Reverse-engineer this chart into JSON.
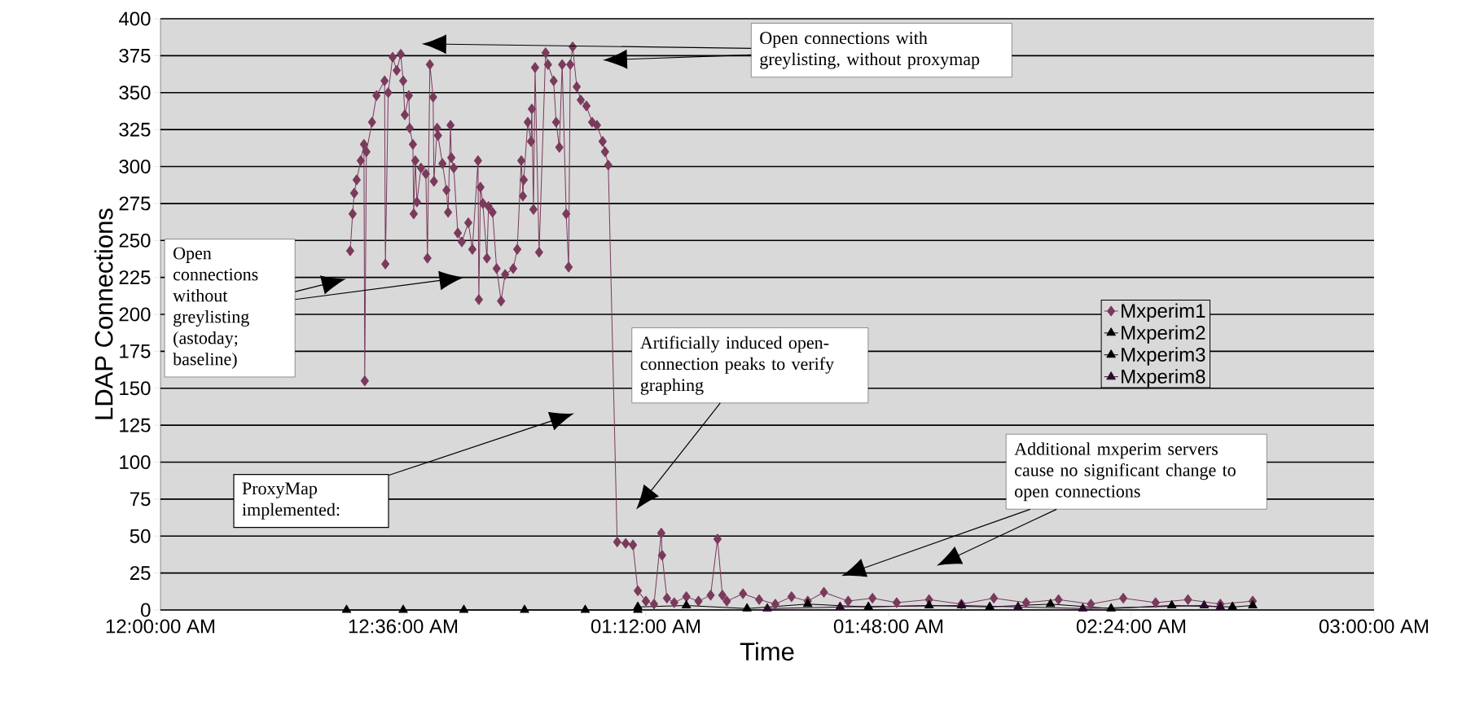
{
  "chart_data": {
    "type": "line",
    "xlabel": "Time",
    "ylabel": "LDAP Connections",
    "xlim": [
      0,
      3
    ],
    "ylim": [
      0,
      400
    ],
    "xticks": [
      {
        "value": 0,
        "label": "12:00:00 AM"
      },
      {
        "value": 0.6,
        "label": "12:36:00 AM"
      },
      {
        "value": 1.2,
        "label": "01:12:00 AM"
      },
      {
        "value": 1.8,
        "label": "01:48:00 AM"
      },
      {
        "value": 2.4,
        "label": "02:24:00 AM"
      },
      {
        "value": 3,
        "label": "03:00:00 AM"
      }
    ],
    "yticks": [
      0,
      25,
      50,
      75,
      100,
      125,
      150,
      175,
      200,
      225,
      250,
      275,
      300,
      325,
      350,
      375,
      400
    ],
    "grid": "y",
    "legend": "right",
    "line_style": "solid",
    "series": [
      {
        "name": "Mxperim1",
        "color": "#7a3a5c",
        "marker": "diamond",
        "x": [
          0.469,
          0.475,
          0.479,
          0.485,
          0.495,
          0.503,
          0.505,
          0.509,
          0.523,
          0.534,
          0.554,
          0.556,
          0.563,
          0.574,
          0.584,
          0.594,
          0.6,
          0.604,
          0.614,
          0.616,
          0.624,
          0.626,
          0.63,
          0.634,
          0.644,
          0.656,
          0.66,
          0.666,
          0.674,
          0.676,
          0.684,
          0.686,
          0.697,
          0.707,
          0.711,
          0.717,
          0.719,
          0.725,
          0.735,
          0.745,
          0.761,
          0.771,
          0.785,
          0.787,
          0.791,
          0.797,
          0.807,
          0.811,
          0.821,
          0.831,
          0.842,
          0.852,
          0.872,
          0.882,
          0.892,
          0.896,
          0.898,
          0.908,
          0.916,
          0.918,
          0.922,
          0.926,
          0.936,
          0.952,
          0.958,
          0.972,
          0.978,
          0.986,
          0.993,
          1.003,
          1.009,
          1.013,
          1.019,
          1.029,
          1.039,
          1.053,
          1.067,
          1.079,
          1.093,
          1.099,
          1.107,
          1.129,
          1.15,
          1.168,
          1.18,
          1.2,
          1.22,
          1.238,
          1.24,
          1.252,
          1.27,
          1.3,
          1.33,
          1.36,
          1.377,
          1.389,
          1.4,
          1.44,
          1.48,
          1.52,
          1.56,
          1.6,
          1.64,
          1.7,
          1.76,
          1.82,
          1.9,
          1.98,
          2.06,
          2.14,
          2.22,
          2.3,
          2.38,
          2.46,
          2.54,
          2.62,
          2.7
        ],
        "values": [
          243,
          268,
          282,
          291,
          304,
          315,
          155,
          310,
          330,
          348,
          358,
          234,
          350,
          374,
          365,
          376,
          358,
          335,
          348,
          326,
          315,
          268,
          304,
          276,
          299,
          295,
          238,
          369,
          347,
          290,
          326,
          321,
          302,
          284,
          269,
          328,
          306,
          299,
          255,
          249,
          262,
          244,
          304,
          210,
          286,
          275,
          238,
          273,
          269,
          231,
          209,
          227,
          231,
          244,
          304,
          280,
          291,
          330,
          317,
          339,
          271,
          367,
          242,
          377,
          369,
          358,
          330,
          313,
          369,
          268,
          232,
          369,
          381,
          354,
          345,
          341,
          330,
          328,
          317,
          310,
          301,
          46,
          45,
          44,
          13,
          6,
          4,
          52,
          37,
          8,
          5,
          9,
          6,
          10,
          48,
          10,
          6,
          11,
          7,
          4,
          9,
          6,
          12,
          6,
          8,
          5,
          7,
          4,
          8,
          5,
          7,
          4,
          8,
          5,
          7,
          4,
          6
        ]
      },
      {
        "name": "Mxperim2",
        "color": "#000000",
        "marker": "triangle",
        "x": [
          0.46,
          0.6,
          0.75,
          0.9,
          1.05,
          1.18
        ],
        "values": [
          0,
          0,
          0,
          0,
          0,
          0
        ]
      },
      {
        "name": "Mxperim3",
        "color": "#000000",
        "marker": "triangle",
        "x": [
          1.18,
          1.3,
          1.45,
          1.6,
          1.75,
          1.9,
          2.05,
          2.2,
          2.35,
          2.5,
          2.65,
          2.7
        ],
        "values": [
          2,
          3,
          1,
          4,
          2,
          3,
          2,
          4,
          1,
          3,
          2,
          3
        ]
      },
      {
        "name": "Mxperim8",
        "color": "#2a0a2a",
        "marker": "triangle",
        "x": [
          1.5,
          1.68,
          1.98,
          2.12,
          2.28,
          2.58,
          2.62
        ],
        "values": [
          1,
          2,
          3,
          2,
          1,
          3,
          2
        ]
      }
    ],
    "annotations": [
      "Open connections with greylisting, without proxymap",
      "Open connections without greylisting (astoday; baseline)",
      "ProxyMap implemented:",
      "Artificially induced open-connection peaks to verify graphing",
      "Additional mxperim servers cause no significant change to open connections"
    ]
  }
}
